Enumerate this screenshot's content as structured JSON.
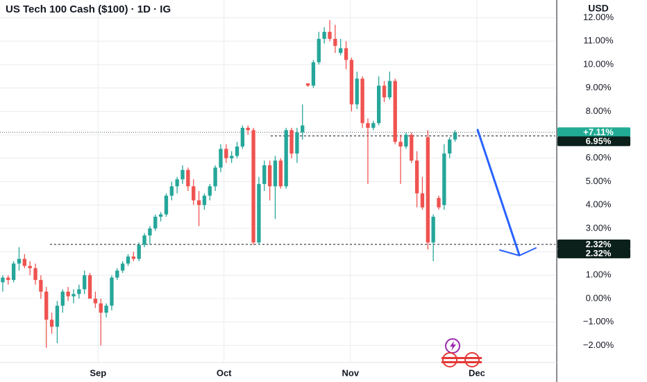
{
  "chart_data": {
    "type": "candlestick",
    "title": "US Tech 100 Cash ($100) · 1D · IG",
    "currency": "USD",
    "up_color": "#26a69a",
    "down_color": "#ef5350",
    "grid": true,
    "ylim": [
      -2.73,
      12.76
    ],
    "yticks": [
      {
        "value": -2,
        "label": "−2.00%"
      },
      {
        "value": -1,
        "label": "−1.00%"
      },
      {
        "value": 0,
        "label": "0.00%"
      },
      {
        "value": 1,
        "label": "1.00%"
      },
      {
        "value": 2,
        "label": "2.00%"
      },
      {
        "value": 3,
        "label": "3.00%"
      },
      {
        "value": 4,
        "label": "4.00%"
      },
      {
        "value": 5,
        "label": "5.00%"
      },
      {
        "value": 6,
        "label": "6.00%"
      },
      {
        "value": 7,
        "label": "7.00%"
      },
      {
        "value": 8,
        "label": "8.00%"
      },
      {
        "value": 9,
        "label": "9.00%"
      },
      {
        "value": 10,
        "label": "10.00%"
      },
      {
        "value": 11,
        "label": "11.00%"
      },
      {
        "value": 12,
        "label": "12.00%"
      }
    ],
    "xlim": [
      -0.5,
      101.4
    ],
    "xticks": [
      {
        "value": 17.5,
        "label": "Sep"
      },
      {
        "value": 40.6,
        "label": "Oct"
      },
      {
        "value": 63.8,
        "label": "Nov"
      },
      {
        "value": 87,
        "label": "Dec"
      }
    ],
    "ohlc": [
      [
        0.7,
        1.0,
        0.3,
        0.9
      ],
      [
        0.9,
        1.0,
        0.6,
        0.8
      ],
      [
        0.8,
        1.6,
        0.7,
        1.5
      ],
      [
        1.5,
        2.2,
        1.2,
        1.7
      ],
      [
        1.7,
        1.9,
        1.3,
        1.4
      ],
      [
        1.4,
        1.6,
        1.0,
        1.3
      ],
      [
        1.3,
        1.5,
        0.6,
        0.8
      ],
      [
        0.8,
        1.0,
        0.0,
        0.3
      ],
      [
        0.3,
        0.5,
        -2.1,
        -0.9
      ],
      [
        -0.9,
        -0.6,
        -1.5,
        -1.2
      ],
      [
        -1.2,
        -0.1,
        -1.9,
        -0.3
      ],
      [
        -0.3,
        0.4,
        -0.6,
        0.3
      ],
      [
        0.3,
        0.5,
        -0.1,
        0.1
      ],
      [
        0.1,
        0.4,
        -0.2,
        0.2
      ],
      [
        0.2,
        0.6,
        0.0,
        0.4
      ],
      [
        0.4,
        1.2,
        0.2,
        1.0
      ],
      [
        1.0,
        1.1,
        0.0,
        0.0
      ],
      [
        0.0,
        0.3,
        -0.4,
        -0.2
      ],
      [
        -0.2,
        0.0,
        -2.0,
        -0.6
      ],
      [
        -0.6,
        -0.2,
        -0.8,
        -0.3
      ],
      [
        -0.3,
        1.0,
        -0.5,
        0.9
      ],
      [
        0.9,
        1.3,
        0.8,
        1.2
      ],
      [
        1.2,
        1.6,
        1.1,
        1.5
      ],
      [
        1.5,
        1.9,
        1.4,
        1.8
      ],
      [
        1.8,
        2.0,
        1.6,
        1.7
      ],
      [
        1.7,
        2.4,
        1.6,
        2.3
      ],
      [
        2.3,
        2.8,
        2.2,
        2.7
      ],
      [
        2.7,
        3.1,
        2.3,
        3.0
      ],
      [
        3.0,
        3.6,
        2.9,
        3.5
      ],
      [
        3.5,
        3.7,
        3.3,
        3.6
      ],
      [
        3.6,
        4.5,
        3.5,
        4.4
      ],
      [
        4.4,
        5.0,
        4.2,
        4.8
      ],
      [
        4.8,
        5.2,
        4.5,
        5.1
      ],
      [
        5.1,
        5.7,
        4.9,
        5.5
      ],
      [
        5.5,
        5.6,
        4.6,
        4.8
      ],
      [
        4.8,
        5.1,
        4.0,
        4.2
      ],
      [
        4.2,
        4.6,
        3.1,
        4.0
      ],
      [
        4.0,
        4.5,
        3.8,
        4.4
      ],
      [
        4.4,
        4.9,
        4.2,
        4.8
      ],
      [
        4.8,
        5.7,
        4.6,
        5.6
      ],
      [
        5.6,
        6.6,
        5.4,
        6.4
      ],
      [
        6.4,
        6.6,
        5.8,
        6.0
      ],
      [
        6.0,
        6.3,
        5.8,
        6.1
      ],
      [
        6.1,
        6.7,
        6.0,
        6.5
      ],
      [
        6.5,
        7.4,
        6.4,
        7.3
      ],
      [
        7.3,
        7.4,
        7.0,
        7.2
      ],
      [
        7.2,
        7.3,
        2.3,
        2.4
      ],
      [
        2.4,
        5.2,
        2.3,
        4.9
      ],
      [
        4.9,
        5.9,
        4.6,
        5.7
      ],
      [
        5.7,
        5.9,
        4.2,
        4.8
      ],
      [
        4.8,
        6.1,
        3.4,
        5.9
      ],
      [
        5.9,
        6.0,
        4.7,
        4.8
      ],
      [
        4.8,
        7.3,
        4.7,
        7.2
      ],
      [
        7.2,
        7.3,
        6.0,
        6.2
      ],
      [
        6.2,
        7.3,
        5.8,
        7.1
      ],
      [
        7.1,
        8.3,
        6.8,
        7.4
      ],
      [
        9.2,
        9.2,
        9.05,
        9.1
      ],
      [
        9.1,
        10.2,
        9.0,
        10.1
      ],
      [
        10.1,
        11.4,
        10.0,
        11.1
      ],
      [
        11.1,
        11.6,
        10.9,
        11.4
      ],
      [
        11.4,
        11.9,
        11.0,
        11.1
      ],
      [
        11.1,
        11.7,
        10.5,
        10.8
      ],
      [
        10.5,
        11.1,
        10.4,
        10.7
      ],
      [
        10.7,
        11.0,
        9.8,
        10.2
      ],
      [
        10.2,
        10.3,
        8.0,
        8.3
      ],
      [
        8.3,
        9.7,
        8.1,
        9.4
      ],
      [
        9.4,
        9.5,
        7.3,
        7.5
      ],
      [
        7.5,
        7.7,
        4.9,
        7.3
      ],
      [
        7.3,
        7.6,
        7.2,
        7.5
      ],
      [
        7.5,
        9.5,
        7.4,
        9.1
      ],
      [
        9.1,
        9.3,
        8.4,
        8.6
      ],
      [
        8.6,
        9.7,
        8.5,
        9.3
      ],
      [
        9.3,
        9.4,
        6.6,
        6.7
      ],
      [
        6.7,
        7.0,
        4.9,
        6.5
      ],
      [
        6.5,
        7.1,
        6.4,
        7.0
      ],
      [
        7.0,
        7.1,
        5.8,
        5.9
      ],
      [
        5.9,
        6.3,
        3.9,
        4.5
      ],
      [
        4.5,
        5.2,
        3.8,
        3.9
      ],
      [
        6.9,
        7.2,
        2.1,
        2.4
      ],
      [
        2.4,
        3.6,
        1.6,
        3.5
      ],
      [
        4.3,
        4.4,
        3.8,
        3.9
      ],
      [
        4.0,
        6.6,
        3.8,
        6.2
      ],
      [
        6.2,
        6.9,
        6.0,
        6.8
      ],
      [
        6.8,
        7.2,
        6.7,
        7.1
      ]
    ],
    "price_lines": [
      {
        "value": 7.11,
        "label": "+7.11%",
        "color": "#22ab94",
        "style": "dotted"
      },
      {
        "value": 6.95,
        "label": "6.95%",
        "color": "#0b1f1b",
        "style": "dashed"
      },
      {
        "value": 2.32,
        "label": "2.32%",
        "color": "#0b1f1b",
        "style": "dashed"
      },
      {
        "value": 2.32,
        "label": "2.32%",
        "color": "#0b1f1b"
      }
    ]
  }
}
